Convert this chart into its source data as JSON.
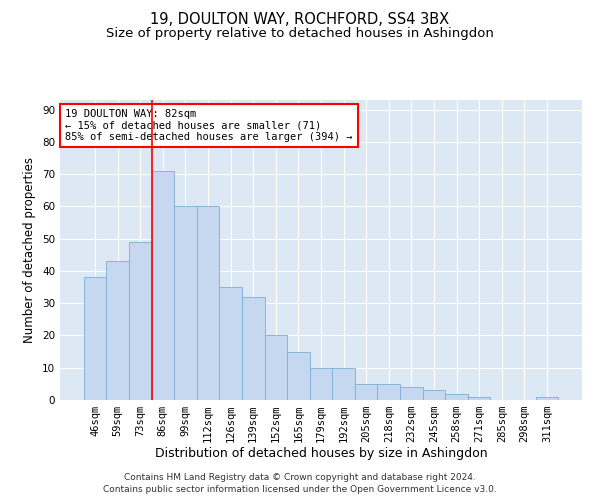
{
  "title": "19, DOULTON WAY, ROCHFORD, SS4 3BX",
  "subtitle": "Size of property relative to detached houses in Ashingdon",
  "xlabel": "Distribution of detached houses by size in Ashingdon",
  "ylabel": "Number of detached properties",
  "categories": [
    "46sqm",
    "59sqm",
    "73sqm",
    "86sqm",
    "99sqm",
    "112sqm",
    "126sqm",
    "139sqm",
    "152sqm",
    "165sqm",
    "179sqm",
    "192sqm",
    "205sqm",
    "218sqm",
    "232sqm",
    "245sqm",
    "258sqm",
    "271sqm",
    "285sqm",
    "298sqm",
    "311sqm"
  ],
  "values": [
    38,
    43,
    49,
    71,
    60,
    60,
    35,
    32,
    20,
    15,
    10,
    10,
    5,
    5,
    4,
    3,
    2,
    1,
    0,
    0,
    1
  ],
  "bar_color": "#c5d8f0",
  "bar_edge_color": "#7aafd4",
  "background_color": "#dde8f5",
  "annotation_text": "19 DOULTON WAY: 82sqm\n← 15% of detached houses are smaller (71)\n85% of semi-detached houses are larger (394) →",
  "annotation_box_color": "white",
  "annotation_box_edge": "red",
  "red_line_x": 2.5,
  "ylim": [
    0,
    93
  ],
  "yticks": [
    0,
    10,
    20,
    30,
    40,
    50,
    60,
    70,
    80,
    90
  ],
  "footnote": "Contains HM Land Registry data © Crown copyright and database right 2024.\nContains public sector information licensed under the Open Government Licence v3.0.",
  "title_fontsize": 10.5,
  "subtitle_fontsize": 9.5,
  "xlabel_fontsize": 9,
  "ylabel_fontsize": 8.5,
  "tick_fontsize": 7.5,
  "annotation_fontsize": 7.5,
  "footnote_fontsize": 6.5
}
